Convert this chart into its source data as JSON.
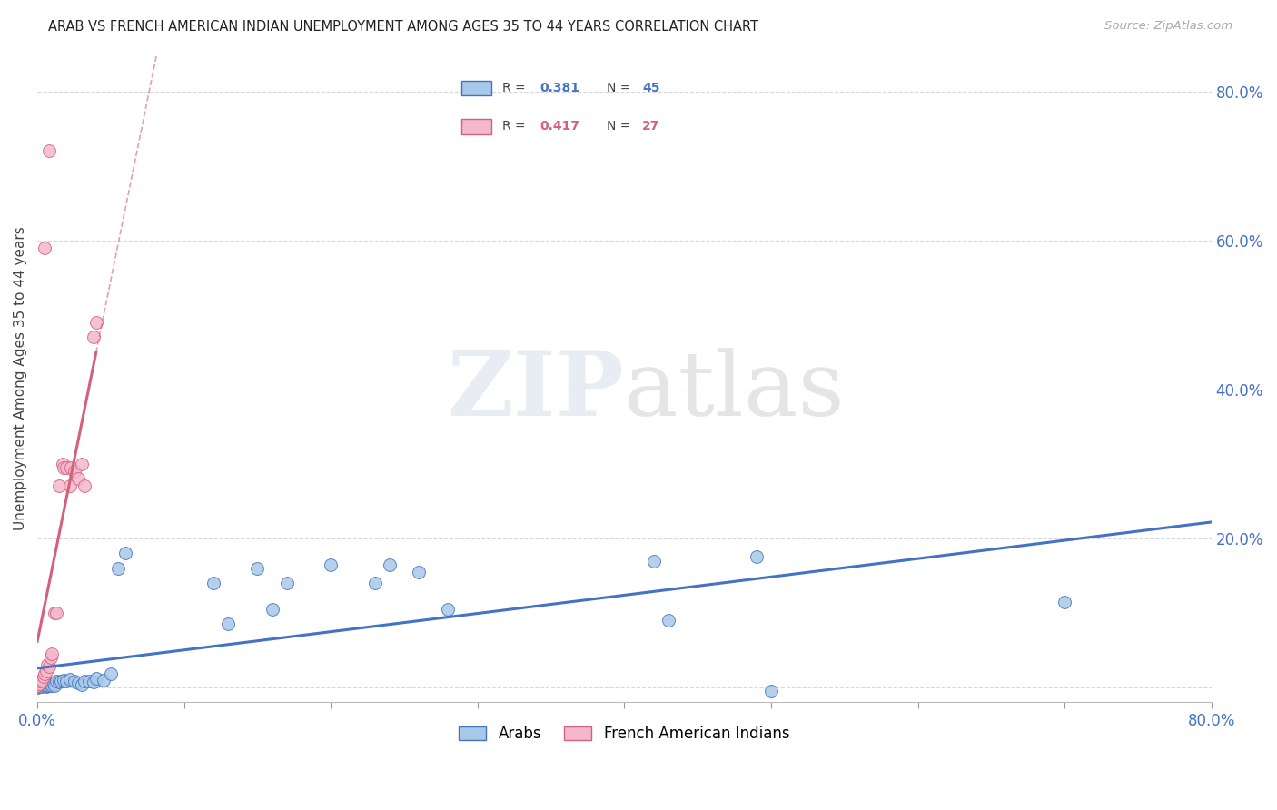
{
  "title": "ARAB VS FRENCH AMERICAN INDIAN UNEMPLOYMENT AMONG AGES 35 TO 44 YEARS CORRELATION CHART",
  "source": "Source: ZipAtlas.com",
  "ylabel": "Unemployment Among Ages 35 to 44 years",
  "arab_R": 0.381,
  "arab_N": 45,
  "fai_R": 0.417,
  "fai_N": 27,
  "arab_color": "#a8c8e8",
  "fai_color": "#f4b8cc",
  "arab_line_color": "#4472c4",
  "fai_line_color": "#d4607a",
  "arab_scatter": [
    [
      0.0,
      0.0
    ],
    [
      0.001,
      0.001
    ],
    [
      0.002,
      0.002
    ],
    [
      0.003,
      0.001
    ],
    [
      0.004,
      0.003
    ],
    [
      0.005,
      0.002
    ],
    [
      0.006,
      0.001
    ],
    [
      0.007,
      0.003
    ],
    [
      0.008,
      0.002
    ],
    [
      0.009,
      0.004
    ],
    [
      0.01,
      0.002
    ],
    [
      0.011,
      0.005
    ],
    [
      0.012,
      0.003
    ],
    [
      0.013,
      0.008
    ],
    [
      0.015,
      0.007
    ],
    [
      0.016,
      0.009
    ],
    [
      0.018,
      0.01
    ],
    [
      0.02,
      0.009
    ],
    [
      0.022,
      0.011
    ],
    [
      0.025,
      0.008
    ],
    [
      0.028,
      0.006
    ],
    [
      0.03,
      0.004
    ],
    [
      0.032,
      0.008
    ],
    [
      0.035,
      0.009
    ],
    [
      0.038,
      0.007
    ],
    [
      0.04,
      0.012
    ],
    [
      0.045,
      0.01
    ],
    [
      0.05,
      0.018
    ],
    [
      0.055,
      0.16
    ],
    [
      0.06,
      0.18
    ],
    [
      0.12,
      0.14
    ],
    [
      0.13,
      0.085
    ],
    [
      0.15,
      0.16
    ],
    [
      0.16,
      0.105
    ],
    [
      0.17,
      0.14
    ],
    [
      0.2,
      0.165
    ],
    [
      0.23,
      0.14
    ],
    [
      0.24,
      0.165
    ],
    [
      0.26,
      0.155
    ],
    [
      0.28,
      0.105
    ],
    [
      0.42,
      0.17
    ],
    [
      0.43,
      0.09
    ],
    [
      0.49,
      0.175
    ],
    [
      0.5,
      -0.005
    ],
    [
      0.7,
      0.115
    ]
  ],
  "fai_scatter": [
    [
      0.0,
      0.003
    ],
    [
      0.001,
      0.005
    ],
    [
      0.002,
      0.008
    ],
    [
      0.003,
      0.01
    ],
    [
      0.004,
      0.015
    ],
    [
      0.005,
      0.018
    ],
    [
      0.006,
      0.022
    ],
    [
      0.007,
      0.03
    ],
    [
      0.008,
      0.028
    ],
    [
      0.009,
      0.04
    ],
    [
      0.01,
      0.045
    ],
    [
      0.012,
      0.1
    ],
    [
      0.013,
      0.1
    ],
    [
      0.015,
      0.27
    ],
    [
      0.017,
      0.3
    ],
    [
      0.018,
      0.295
    ],
    [
      0.02,
      0.295
    ],
    [
      0.022,
      0.27
    ],
    [
      0.023,
      0.295
    ],
    [
      0.025,
      0.29
    ],
    [
      0.028,
      0.28
    ],
    [
      0.03,
      0.3
    ],
    [
      0.032,
      0.27
    ],
    [
      0.038,
      0.47
    ],
    [
      0.04,
      0.49
    ],
    [
      0.005,
      0.59
    ],
    [
      0.008,
      0.72
    ]
  ],
  "background_color": "#ffffff",
  "grid_color": "#d8d8d8",
  "xlim": [
    0.0,
    0.8
  ],
  "ylim": [
    -0.02,
    0.85
  ],
  "xticks": [
    0.0,
    0.1,
    0.2,
    0.3,
    0.4,
    0.5,
    0.6,
    0.7,
    0.8
  ],
  "xtick_labels": [
    "0.0%",
    "",
    "",
    "",
    "",
    "",
    "",
    "",
    "80.0%"
  ],
  "yticks": [
    0.0,
    0.2,
    0.4,
    0.6,
    0.8
  ],
  "ytick_labels": [
    "",
    "20.0%",
    "40.0%",
    "60.0%",
    "80.0%"
  ]
}
